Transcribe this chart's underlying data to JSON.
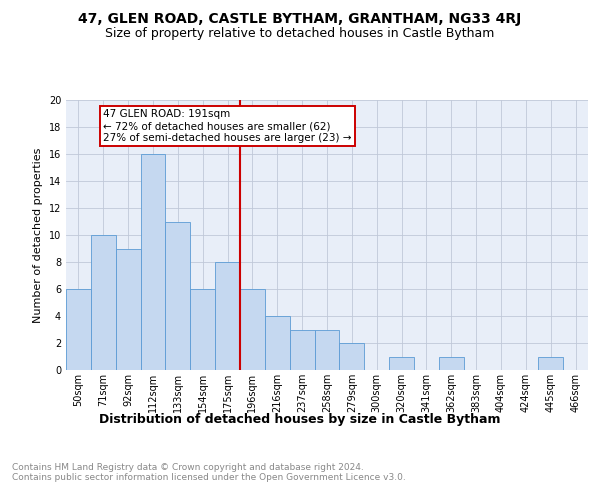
{
  "title": "47, GLEN ROAD, CASTLE BYTHAM, GRANTHAM, NG33 4RJ",
  "subtitle": "Size of property relative to detached houses in Castle Bytham",
  "xlabel": "Distribution of detached houses by size in Castle Bytham",
  "ylabel": "Number of detached properties",
  "bar_labels": [
    "50sqm",
    "71sqm",
    "92sqm",
    "112sqm",
    "133sqm",
    "154sqm",
    "175sqm",
    "196sqm",
    "216sqm",
    "237sqm",
    "258sqm",
    "279sqm",
    "300sqm",
    "320sqm",
    "341sqm",
    "362sqm",
    "383sqm",
    "404sqm",
    "424sqm",
    "445sqm",
    "466sqm"
  ],
  "bar_values": [
    6,
    10,
    9,
    16,
    11,
    6,
    8,
    6,
    4,
    3,
    3,
    2,
    0,
    1,
    0,
    1,
    0,
    0,
    0,
    1,
    0
  ],
  "bar_color": "#c5d8f0",
  "bar_edgecolor": "#5b9bd5",
  "reference_line_color": "#cc0000",
  "annotation_text": "47 GLEN ROAD: 191sqm\n← 72% of detached houses are smaller (62)\n27% of semi-detached houses are larger (23) →",
  "annotation_box_edgecolor": "#cc0000",
  "ylim": [
    0,
    20
  ],
  "yticks": [
    0,
    2,
    4,
    6,
    8,
    10,
    12,
    14,
    16,
    18,
    20
  ],
  "grid_color": "#c0c8d8",
  "background_color": "#e8eef8",
  "footer_text": "Contains HM Land Registry data © Crown copyright and database right 2024.\nContains public sector information licensed under the Open Government Licence v3.0.",
  "title_fontsize": 10,
  "subtitle_fontsize": 9,
  "ylabel_fontsize": 8,
  "xlabel_fontsize": 9,
  "tick_fontsize": 7,
  "annotation_fontsize": 7.5,
  "footer_fontsize": 6.5
}
